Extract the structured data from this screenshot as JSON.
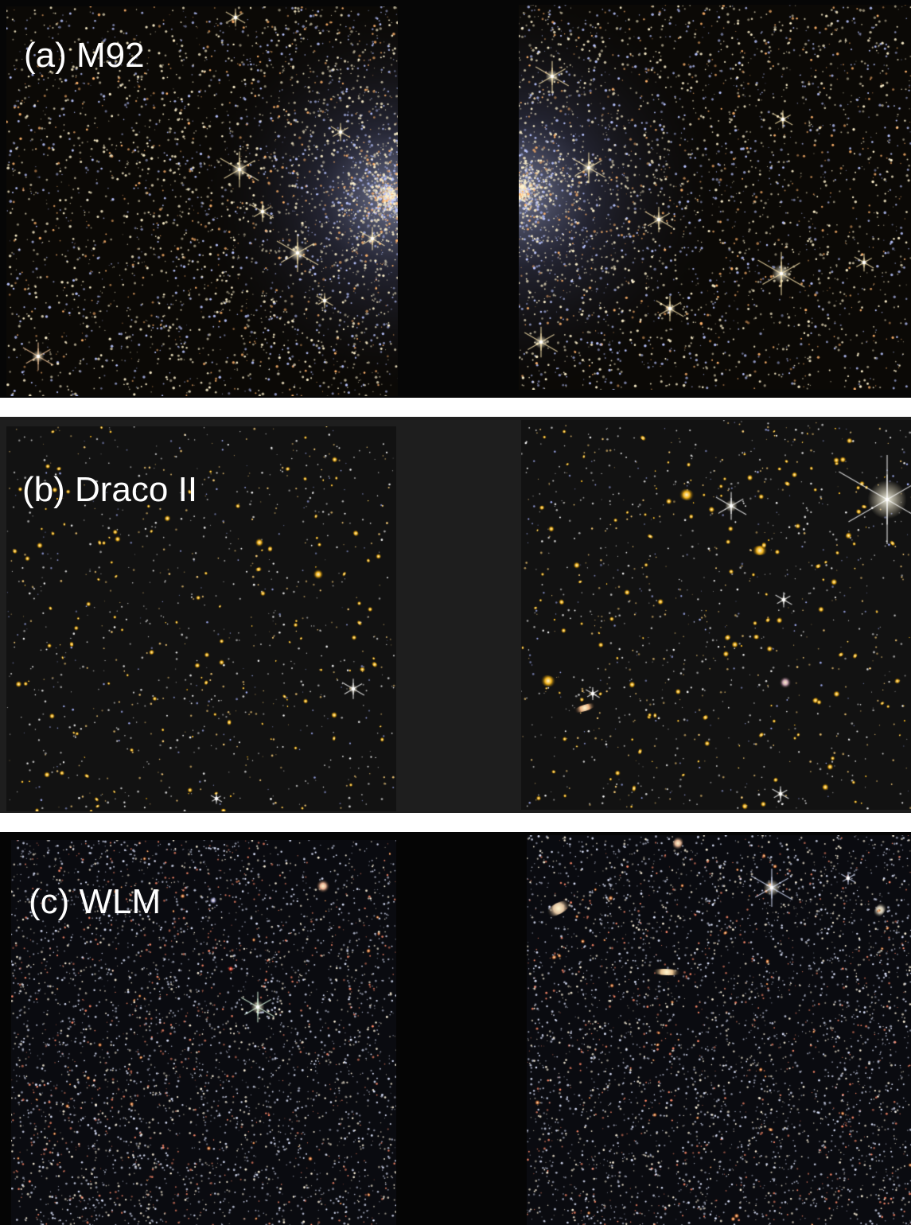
{
  "panels": [
    {
      "id": "a",
      "label": "(a) M92",
      "field": "globular-cluster",
      "colors": {
        "gap": "#060606",
        "star": "#f5e3b0",
        "halo": "#9aa8ff"
      },
      "star_density": "very-high"
    },
    {
      "id": "b",
      "label": "(b) Draco II",
      "field": "sparse-galaxy-field",
      "colors": {
        "gap": "#1e1e1e",
        "galaxy": "#f2b21a",
        "star": "#ffffff"
      },
      "star_density": "low"
    },
    {
      "id": "c",
      "label": "(c) WLM",
      "field": "dwarf-galaxy",
      "colors": {
        "gap": "#050505",
        "star": "#dfe6ff",
        "accent": "#d33a2a"
      },
      "star_density": "high"
    }
  ]
}
